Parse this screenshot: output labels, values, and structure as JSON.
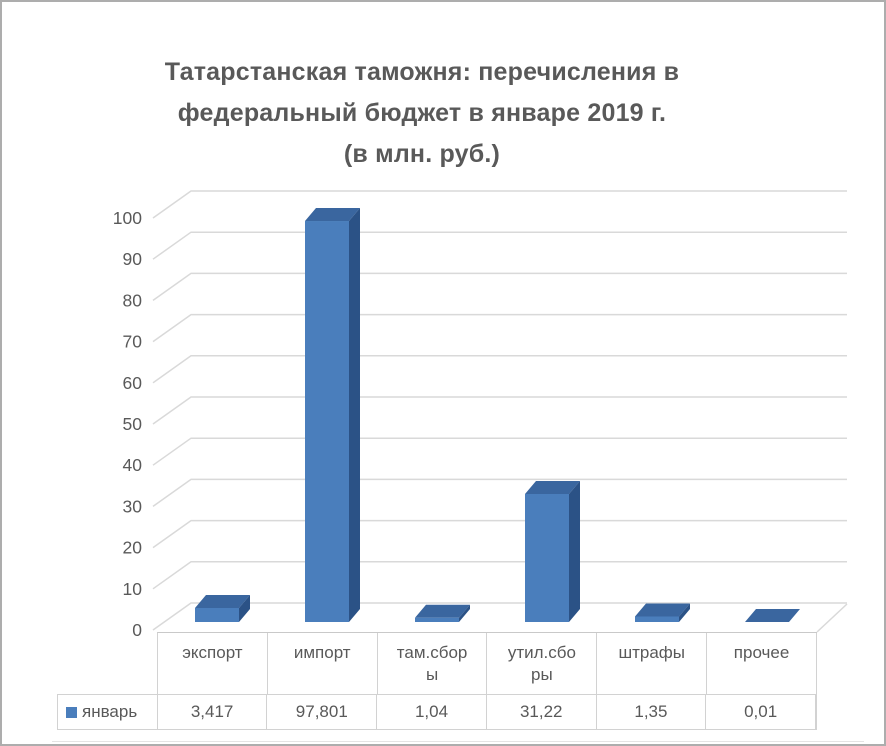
{
  "window": {
    "background": "#ffffff",
    "border_color": "#adadad"
  },
  "chart_data": {
    "type": "bar",
    "style": "3d-column",
    "title": "Татарстанская таможня: перечисления в федеральный бюджет в январе 2019 г. (в млн. руб.)",
    "title_lines": [
      "Татарстанская таможня: перечисления в",
      "федеральный бюджет в январе 2019 г.",
      "(в млн. руб.)"
    ],
    "categories": [
      "экспорт",
      "импорт",
      "там.сборы",
      "утил.сборы",
      "штрафы",
      "прочее"
    ],
    "category_labels_wrapped": [
      "экспорт",
      "импорт",
      "там.сбор\nы",
      "утил.сбо\nры",
      "штрафы",
      "прочее"
    ],
    "series": [
      {
        "name": "январь",
        "values": [
          3.417,
          97.801,
          1.04,
          31.22,
          1.35,
          0.01
        ],
        "values_display": [
          "3,417",
          "97,801",
          "1,04",
          "31,22",
          "1,35",
          "0,01"
        ]
      }
    ],
    "xlabel": "",
    "ylabel": "",
    "ylim": [
      0,
      100
    ],
    "ytick_step": 10,
    "ytick_labels": [
      "0",
      "10",
      "20",
      "30",
      "40",
      "50",
      "60",
      "70",
      "80",
      "90",
      "100"
    ],
    "grid": true,
    "legend_position": "data-table-left",
    "colors": {
      "bar_front": "#4a7ebc",
      "bar_top": "#3a669f",
      "bar_side": "#2b5286",
      "grid": "#d9d9d9",
      "axis_text": "#595959",
      "title_text": "#595959",
      "table_border": "#d2d2d2",
      "legend_marker": "#4a7ebc"
    }
  }
}
